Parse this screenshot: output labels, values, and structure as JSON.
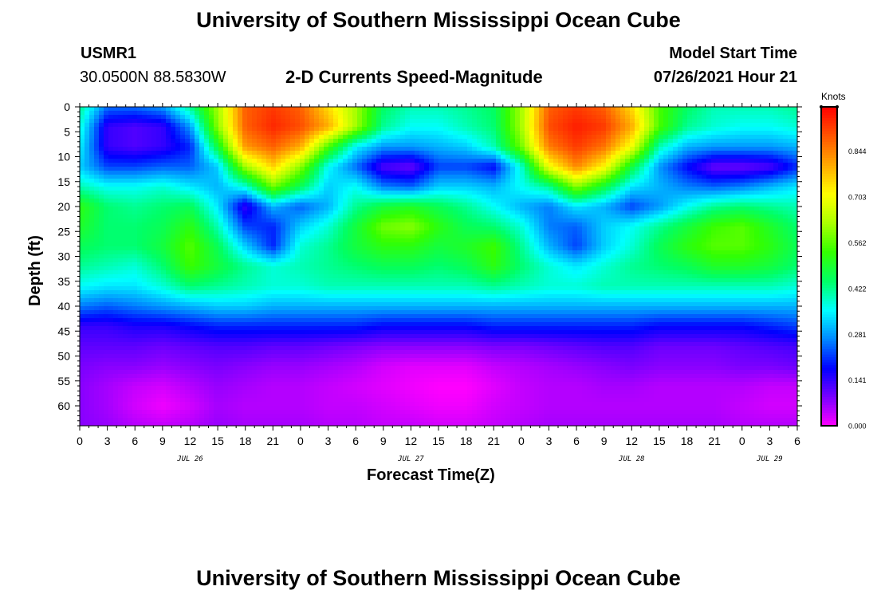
{
  "header": {
    "title": "University of Southern Mississippi Ocean Cube",
    "station": "USMR1",
    "coords": "30.0500N  88.5830W",
    "subtitle": "2-D Currents Speed-Magnitude",
    "model_label": "Model Start Time",
    "model_time": "07/26/2021 Hour 21"
  },
  "footer": {
    "title": "University of Southern Mississippi Ocean Cube"
  },
  "chart_data": {
    "type": "heatmap",
    "title": "2-D Currents Speed-Magnitude",
    "xlabel": "Forecast Time(Z)",
    "ylabel": "Depth (ft)",
    "x_unit": "hours from 07/26/2021 00Z",
    "xlim": [
      0,
      78
    ],
    "ylim": [
      0,
      64
    ],
    "x_ticks": [
      0,
      3,
      6,
      9,
      12,
      15,
      18,
      21,
      24,
      27,
      30,
      33,
      36,
      39,
      42,
      45,
      48,
      51,
      54,
      57,
      60,
      63,
      66,
      69,
      72,
      75,
      78
    ],
    "x_tick_labels": [
      "0",
      "3",
      "6",
      "9",
      "12",
      "15",
      "18",
      "21",
      "0",
      "3",
      "6",
      "9",
      "12",
      "15",
      "18",
      "21",
      "0",
      "3",
      "6",
      "9",
      "12",
      "15",
      "18",
      "21",
      "0",
      "3",
      "6"
    ],
    "y_ticks": [
      0,
      5,
      10,
      15,
      20,
      25,
      30,
      35,
      40,
      45,
      50,
      55,
      60
    ],
    "y_tick_labels": [
      "0",
      "5",
      "10",
      "15",
      "20",
      "25",
      "30",
      "35",
      "40",
      "45",
      "50",
      "55",
      "60"
    ],
    "date_labels": [
      {
        "x": 12,
        "label": "JUL 26"
      },
      {
        "x": 36,
        "label": "JUL 27"
      },
      {
        "x": 60,
        "label": "JUL 28"
      },
      {
        "x": 75,
        "label": "JUL 29"
      }
    ],
    "colorbar": {
      "title": "Knots",
      "ticks": [
        0.0,
        0.141,
        0.281,
        0.422,
        0.562,
        0.703,
        0.844
      ],
      "tick_labels": [
        "0.000",
        "0.141",
        "0.281",
        "0.422",
        "0.562",
        "0.703",
        "0.844"
      ],
      "max": 0.98,
      "colors": [
        "#ff00ff",
        "#7a00ff",
        "#0000ff",
        "#0088ff",
        "#00ffff",
        "#00ff66",
        "#33ff00",
        "#aaff00",
        "#ffff00",
        "#ffaa00",
        "#ff5500",
        "#ff0000"
      ]
    },
    "y_rows": [
      0,
      4,
      8,
      12,
      16,
      20,
      24,
      28,
      32,
      36,
      40,
      44,
      48,
      52,
      56,
      60,
      64
    ],
    "x_cols": [
      0,
      3,
      6,
      9,
      12,
      15,
      18,
      21,
      24,
      27,
      30,
      33,
      36,
      39,
      42,
      45,
      48,
      51,
      54,
      57,
      60,
      63,
      66,
      69,
      72,
      75,
      78
    ],
    "values": [
      [
        0.42,
        0.25,
        0.25,
        0.28,
        0.42,
        0.62,
        0.88,
        0.92,
        0.88,
        0.75,
        0.62,
        0.45,
        0.4,
        0.4,
        0.42,
        0.45,
        0.62,
        0.88,
        0.92,
        0.88,
        0.75,
        0.55,
        0.45,
        0.4,
        0.4,
        0.4,
        0.42
      ],
      [
        0.38,
        0.14,
        0.12,
        0.14,
        0.28,
        0.6,
        0.88,
        0.94,
        0.9,
        0.8,
        0.62,
        0.42,
        0.36,
        0.36,
        0.4,
        0.44,
        0.62,
        0.9,
        0.95,
        0.92,
        0.8,
        0.55,
        0.42,
        0.38,
        0.36,
        0.36,
        0.38
      ],
      [
        0.35,
        0.14,
        0.12,
        0.14,
        0.2,
        0.48,
        0.82,
        0.88,
        0.8,
        0.55,
        0.35,
        0.28,
        0.28,
        0.3,
        0.32,
        0.4,
        0.58,
        0.85,
        0.92,
        0.86,
        0.7,
        0.4,
        0.3,
        0.28,
        0.28,
        0.28,
        0.3
      ],
      [
        0.32,
        0.22,
        0.22,
        0.24,
        0.24,
        0.32,
        0.62,
        0.76,
        0.6,
        0.36,
        0.25,
        0.12,
        0.1,
        0.22,
        0.22,
        0.18,
        0.38,
        0.7,
        0.84,
        0.72,
        0.48,
        0.28,
        0.18,
        0.1,
        0.1,
        0.12,
        0.2
      ],
      [
        0.4,
        0.36,
        0.36,
        0.38,
        0.34,
        0.3,
        0.38,
        0.58,
        0.46,
        0.32,
        0.36,
        0.26,
        0.24,
        0.32,
        0.32,
        0.3,
        0.36,
        0.42,
        0.6,
        0.48,
        0.34,
        0.3,
        0.26,
        0.24,
        0.26,
        0.3,
        0.34
      ],
      [
        0.52,
        0.44,
        0.42,
        0.44,
        0.46,
        0.34,
        0.14,
        0.3,
        0.24,
        0.3,
        0.42,
        0.48,
        0.5,
        0.46,
        0.42,
        0.36,
        0.3,
        0.26,
        0.34,
        0.3,
        0.22,
        0.28,
        0.36,
        0.42,
        0.44,
        0.42,
        0.4
      ],
      [
        0.5,
        0.44,
        0.44,
        0.46,
        0.52,
        0.4,
        0.22,
        0.2,
        0.32,
        0.38,
        0.48,
        0.58,
        0.6,
        0.52,
        0.46,
        0.44,
        0.38,
        0.26,
        0.24,
        0.32,
        0.36,
        0.42,
        0.48,
        0.54,
        0.56,
        0.5,
        0.44
      ],
      [
        0.46,
        0.44,
        0.44,
        0.48,
        0.56,
        0.46,
        0.32,
        0.2,
        0.38,
        0.42,
        0.48,
        0.52,
        0.52,
        0.48,
        0.5,
        0.54,
        0.42,
        0.3,
        0.22,
        0.32,
        0.38,
        0.46,
        0.52,
        0.56,
        0.56,
        0.52,
        0.46
      ],
      [
        0.42,
        0.4,
        0.38,
        0.44,
        0.54,
        0.48,
        0.42,
        0.38,
        0.4,
        0.42,
        0.44,
        0.46,
        0.46,
        0.44,
        0.46,
        0.52,
        0.44,
        0.38,
        0.34,
        0.38,
        0.42,
        0.44,
        0.46,
        0.5,
        0.5,
        0.48,
        0.44
      ],
      [
        0.36,
        0.34,
        0.34,
        0.38,
        0.44,
        0.42,
        0.4,
        0.38,
        0.38,
        0.4,
        0.4,
        0.4,
        0.4,
        0.4,
        0.4,
        0.42,
        0.4,
        0.38,
        0.38,
        0.4,
        0.4,
        0.4,
        0.4,
        0.4,
        0.4,
        0.4,
        0.38
      ],
      [
        0.26,
        0.24,
        0.26,
        0.28,
        0.3,
        0.32,
        0.32,
        0.3,
        0.3,
        0.3,
        0.3,
        0.3,
        0.3,
        0.3,
        0.3,
        0.3,
        0.3,
        0.3,
        0.3,
        0.3,
        0.3,
        0.3,
        0.3,
        0.3,
        0.3,
        0.3,
        0.3
      ],
      [
        0.14,
        0.14,
        0.16,
        0.16,
        0.18,
        0.2,
        0.2,
        0.2,
        0.2,
        0.2,
        0.2,
        0.18,
        0.18,
        0.18,
        0.18,
        0.2,
        0.2,
        0.2,
        0.2,
        0.2,
        0.2,
        0.18,
        0.18,
        0.18,
        0.18,
        0.2,
        0.22
      ],
      [
        0.11,
        0.11,
        0.11,
        0.1,
        0.11,
        0.12,
        0.12,
        0.11,
        0.11,
        0.1,
        0.09,
        0.08,
        0.08,
        0.08,
        0.08,
        0.09,
        0.09,
        0.1,
        0.11,
        0.12,
        0.12,
        0.1,
        0.1,
        0.1,
        0.11,
        0.12,
        0.13
      ],
      [
        0.09,
        0.08,
        0.08,
        0.07,
        0.08,
        0.09,
        0.08,
        0.07,
        0.07,
        0.06,
        0.05,
        0.03,
        0.02,
        0.02,
        0.02,
        0.04,
        0.05,
        0.06,
        0.07,
        0.08,
        0.09,
        0.08,
        0.08,
        0.08,
        0.09,
        0.09,
        0.1
      ],
      [
        0.08,
        0.06,
        0.04,
        0.03,
        0.05,
        0.07,
        0.06,
        0.05,
        0.05,
        0.04,
        0.03,
        0.02,
        0.01,
        0.0,
        0.0,
        0.02,
        0.04,
        0.05,
        0.05,
        0.06,
        0.06,
        0.05,
        0.05,
        0.05,
        0.05,
        0.04,
        0.04
      ],
      [
        0.08,
        0.06,
        0.03,
        0.01,
        0.03,
        0.06,
        0.05,
        0.05,
        0.05,
        0.04,
        0.04,
        0.03,
        0.02,
        0.01,
        0.01,
        0.03,
        0.04,
        0.05,
        0.05,
        0.05,
        0.05,
        0.05,
        0.05,
        0.05,
        0.04,
        0.03,
        0.03
      ],
      [
        0.08,
        0.07,
        0.05,
        0.04,
        0.05,
        0.07,
        0.06,
        0.06,
        0.06,
        0.05,
        0.05,
        0.04,
        0.04,
        0.03,
        0.03,
        0.04,
        0.05,
        0.06,
        0.06,
        0.06,
        0.06,
        0.06,
        0.06,
        0.06,
        0.05,
        0.05,
        0.05
      ]
    ]
  }
}
